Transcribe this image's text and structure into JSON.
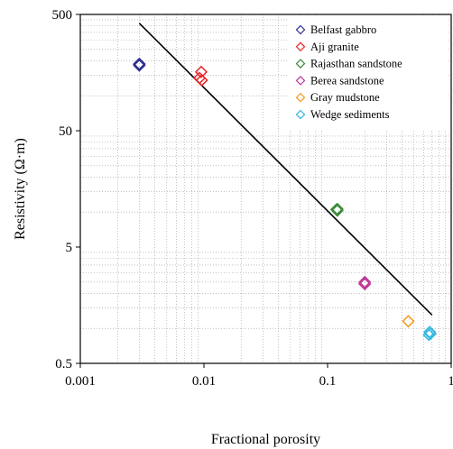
{
  "chart_data": {
    "type": "scatter",
    "xlabel": "Fractional porosity",
    "ylabel": "Resistivity (Ω·m)",
    "x_scale": "log",
    "y_scale": "log",
    "xlim": [
      0.001,
      1
    ],
    "ylim": [
      0.5,
      500
    ],
    "x_ticks": [
      0.001,
      0.01,
      0.1,
      1
    ],
    "x_tick_labels": [
      "0.001",
      "0.01",
      "0.1",
      "1"
    ],
    "y_ticks": [
      0.5,
      5,
      50,
      500
    ],
    "y_tick_labels": [
      "0.5",
      "5",
      "50",
      "500"
    ],
    "grid": "minor-dotted",
    "legend_position": "top-right",
    "series": [
      {
        "name": "Belfast gabbro",
        "color": "#2e3192",
        "marker": "diamond-open",
        "points": [
          [
            0.003,
            185
          ],
          [
            0.003,
            188
          ],
          [
            0.003,
            182
          ],
          [
            0.003,
            186
          ]
        ]
      },
      {
        "name": "Aji granite",
        "color": "#e8262b",
        "marker": "diamond-open",
        "points": [
          [
            0.0095,
            160
          ],
          [
            0.0092,
            142
          ],
          [
            0.0096,
            136
          ]
        ]
      },
      {
        "name": "Rajasthan sandstone",
        "color": "#3a8c3a",
        "marker": "diamond-open",
        "points": [
          [
            0.12,
            10.6
          ],
          [
            0.12,
            10.3
          ],
          [
            0.118,
            10.5
          ]
        ]
      },
      {
        "name": "Berea sandstone",
        "color": "#c0399a",
        "marker": "diamond-open",
        "points": [
          [
            0.2,
            2.5
          ],
          [
            0.2,
            2.4
          ],
          [
            0.199,
            2.45
          ]
        ]
      },
      {
        "name": "Gray mudstone",
        "color": "#f39a1e",
        "marker": "diamond-open",
        "points": [
          [
            0.45,
            1.15
          ]
        ]
      },
      {
        "name": "Wedge sediments",
        "color": "#2fb6e0",
        "marker": "diamond-open",
        "points": [
          [
            0.67,
            0.93
          ],
          [
            0.66,
            0.88
          ],
          [
            0.68,
            0.9
          ]
        ]
      }
    ],
    "fit_line": {
      "color": "#000000",
      "points": [
        [
          0.003,
          420
        ],
        [
          0.7,
          1.3
        ]
      ]
    }
  }
}
